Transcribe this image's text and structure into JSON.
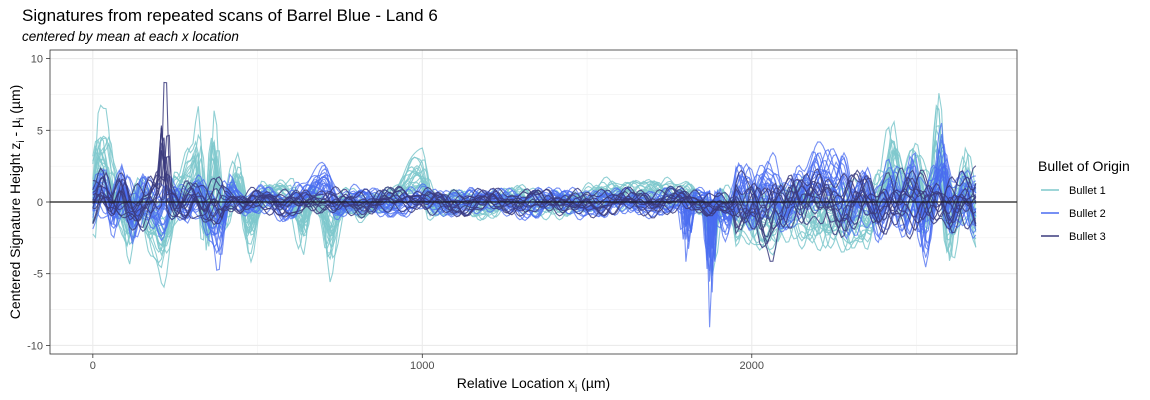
{
  "chart_data": {
    "type": "line",
    "title": "Signatures from repeated scans of Barrel Blue - Land 6",
    "subtitle": "centered by mean at each x location",
    "xlabel": "Relative Location x",
    "xlabel_sub": "i",
    "xlabel_unit": " (µm)",
    "ylabel": "Centered Signature Height z",
    "ylabel_sub": "i",
    "ylabel_mid": " - µ",
    "ylabel_sub2": "i",
    "ylabel_unit": " (µm)",
    "xlim": [
      -130,
      2805
    ],
    "ylim": [
      -10.6,
      10.6
    ],
    "x_ticks": [
      0,
      1000,
      2000
    ],
    "y_ticks": [
      -10,
      -5,
      0,
      5,
      10
    ],
    "x_range": [
      0,
      2680
    ],
    "reference_line_y": 0,
    "grid": true,
    "legend_title": "Bullet of Origin",
    "legend_position": "right",
    "series": [
      {
        "name": "Bullet 1",
        "color": "#7ec8cc",
        "profile": [
          [
            0,
            1.0
          ],
          [
            20,
            7.3
          ],
          [
            40,
            6.8
          ],
          [
            60,
            2.5
          ],
          [
            90,
            -1.5
          ],
          [
            110,
            -4.5
          ],
          [
            140,
            0.5
          ],
          [
            190,
            -4.0
          ],
          [
            215,
            -6.4
          ],
          [
            260,
            1.0
          ],
          [
            300,
            4.0
          ],
          [
            320,
            6.8
          ],
          [
            345,
            -3.5
          ],
          [
            370,
            6.6
          ],
          [
            395,
            -2.0
          ],
          [
            440,
            3.6
          ],
          [
            480,
            -4.0
          ],
          [
            520,
            0.8
          ],
          [
            600,
            1.2
          ],
          [
            640,
            -3.8
          ],
          [
            665,
            1.0
          ],
          [
            700,
            -1.2
          ],
          [
            720,
            -5.5
          ],
          [
            760,
            0.5
          ],
          [
            820,
            -1.0
          ],
          [
            900,
            0.5
          ],
          [
            1000,
            3.7
          ],
          [
            1030,
            -0.5
          ],
          [
            1100,
            0.3
          ],
          [
            1200,
            -0.5
          ],
          [
            1300,
            0.5
          ],
          [
            1400,
            -0.8
          ],
          [
            1500,
            0.8
          ],
          [
            1600,
            1.5
          ],
          [
            1700,
            1.2
          ],
          [
            1800,
            1.2
          ],
          [
            1860,
            -0.8
          ],
          [
            1880,
            -5.0
          ],
          [
            1910,
            1.0
          ],
          [
            1960,
            -2.0
          ],
          [
            2000,
            -2.5
          ],
          [
            2060,
            -3.0
          ],
          [
            2100,
            -2.2
          ],
          [
            2180,
            -1.8
          ],
          [
            2250,
            -2.3
          ],
          [
            2300,
            -2.5
          ],
          [
            2350,
            -1.5
          ],
          [
            2400,
            1.0
          ],
          [
            2430,
            5.5
          ],
          [
            2460,
            1.0
          ],
          [
            2500,
            4.0
          ],
          [
            2540,
            -2.0
          ],
          [
            2570,
            7.5
          ],
          [
            2600,
            -4.2
          ],
          [
            2630,
            1.0
          ],
          [
            2650,
            3.8
          ],
          [
            2680,
            -2.0
          ]
        ]
      },
      {
        "name": "Bullet 2",
        "color": "#4a6cf0",
        "profile": [
          [
            0,
            0.8
          ],
          [
            30,
            2.5
          ],
          [
            60,
            -2.0
          ],
          [
            90,
            2.5
          ],
          [
            120,
            -3.0
          ],
          [
            150,
            0.8
          ],
          [
            200,
            -1.5
          ],
          [
            240,
            0.8
          ],
          [
            280,
            -1.0
          ],
          [
            320,
            1.5
          ],
          [
            360,
            -2.0
          ],
          [
            380,
            -4.8
          ],
          [
            410,
            1.5
          ],
          [
            460,
            -0.5
          ],
          [
            520,
            0.8
          ],
          [
            580,
            -1.0
          ],
          [
            640,
            1.2
          ],
          [
            700,
            3.0
          ],
          [
            740,
            -0.8
          ],
          [
            800,
            0.5
          ],
          [
            900,
            -0.5
          ],
          [
            1000,
            0.5
          ],
          [
            1100,
            -0.3
          ],
          [
            1200,
            0.6
          ],
          [
            1300,
            -0.5
          ],
          [
            1400,
            0.5
          ],
          [
            1500,
            -0.5
          ],
          [
            1600,
            0.3
          ],
          [
            1700,
            -0.5
          ],
          [
            1790,
            0.5
          ],
          [
            1800,
            -4.3
          ],
          [
            1820,
            0.5
          ],
          [
            1860,
            0.3
          ],
          [
            1875,
            -9.6
          ],
          [
            1885,
            0.8
          ],
          [
            1920,
            -2.8
          ],
          [
            1960,
            2.0
          ],
          [
            2000,
            -1.0
          ],
          [
            2050,
            2.5
          ],
          [
            2100,
            -1.5
          ],
          [
            2150,
            1.5
          ],
          [
            2200,
            4.0
          ],
          [
            2260,
            2.5
          ],
          [
            2300,
            -1.0
          ],
          [
            2340,
            2.0
          ],
          [
            2380,
            -2.0
          ],
          [
            2420,
            1.5
          ],
          [
            2460,
            -1.0
          ],
          [
            2490,
            2.5
          ],
          [
            2520,
            -3.8
          ],
          [
            2550,
            1.5
          ],
          [
            2575,
            6.0
          ],
          [
            2600,
            -1.8
          ],
          [
            2640,
            1.5
          ],
          [
            2680,
            -0.5
          ]
        ]
      },
      {
        "name": "Bullet 3",
        "color": "#3b3b7e",
        "profile": [
          [
            0,
            0.3
          ],
          [
            30,
            1.8
          ],
          [
            60,
            -1.0
          ],
          [
            90,
            1.5
          ],
          [
            120,
            -0.8
          ],
          [
            150,
            -1.8
          ],
          [
            180,
            0.5
          ],
          [
            205,
            1.2
          ],
          [
            220,
            10.1
          ],
          [
            235,
            0.8
          ],
          [
            260,
            -0.5
          ],
          [
            300,
            1.2
          ],
          [
            340,
            -1.2
          ],
          [
            400,
            0.8
          ],
          [
            460,
            -0.5
          ],
          [
            520,
            0.5
          ],
          [
            600,
            -0.6
          ],
          [
            700,
            0.5
          ],
          [
            800,
            -0.3
          ],
          [
            900,
            0.3
          ],
          [
            1000,
            0.5
          ],
          [
            1100,
            -0.3
          ],
          [
            1200,
            0.3
          ],
          [
            1300,
            -0.2
          ],
          [
            1400,
            0.2
          ],
          [
            1500,
            -0.3
          ],
          [
            1600,
            0.3
          ],
          [
            1700,
            -0.2
          ],
          [
            1800,
            0.5
          ],
          [
            1900,
            -0.6
          ],
          [
            1960,
            -1.0
          ],
          [
            2000,
            0.8
          ],
          [
            2040,
            -2.8
          ],
          [
            2060,
            -3.8
          ],
          [
            2090,
            -1.0
          ],
          [
            2130,
            1.5
          ],
          [
            2200,
            0.5
          ],
          [
            2260,
            -0.5
          ],
          [
            2320,
            1.5
          ],
          [
            2380,
            -1.5
          ],
          [
            2440,
            0.5
          ],
          [
            2500,
            -0.8
          ],
          [
            2560,
            0.8
          ],
          [
            2620,
            -0.5
          ],
          [
            2680,
            0.5
          ]
        ]
      }
    ]
  }
}
